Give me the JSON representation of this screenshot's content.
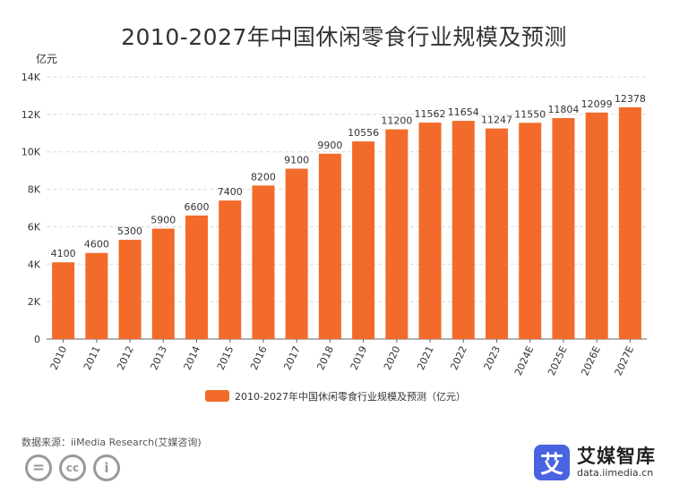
{
  "chart_data": {
    "type": "bar",
    "title": "2010-2027年中国休闲零食行业规模及预测",
    "unit_label": "亿元",
    "categories": [
      "2010",
      "2011",
      "2012",
      "2013",
      "2014",
      "2015",
      "2016",
      "2017",
      "2018",
      "2019",
      "2020",
      "2021",
      "2022",
      "2023",
      "2024E",
      "2025E",
      "2026E",
      "2027E"
    ],
    "values": [
      4100,
      4600,
      5300,
      5900,
      6600,
      7400,
      8200,
      9100,
      9900,
      10556,
      11200,
      11562,
      11654,
      11247,
      11550,
      11804,
      12099,
      12378
    ],
    "ylim": [
      0,
      14000
    ],
    "yticks": [
      0,
      2000,
      4000,
      6000,
      8000,
      10000,
      12000,
      14000
    ],
    "ytick_labels": [
      "0",
      "2K",
      "4K",
      "6K",
      "8K",
      "10K",
      "12K",
      "14K"
    ],
    "series": [
      {
        "name": "2010-2027年中国休闲零食行业规模及预测（亿元）",
        "color": "#f26b2a"
      }
    ],
    "grid": true,
    "legend_position": "bottom"
  },
  "footer": {
    "source": "数据来源：iiMedia Research(艾媒咨询)",
    "license_icons": [
      "equals-icon",
      "cc-icon",
      "person-icon"
    ],
    "license_glyphs": [
      "=",
      "cc",
      "i"
    ]
  },
  "brand": {
    "logo_glyph": "艾",
    "name": "艾媒智库",
    "url": "data.iimedia.cn"
  }
}
